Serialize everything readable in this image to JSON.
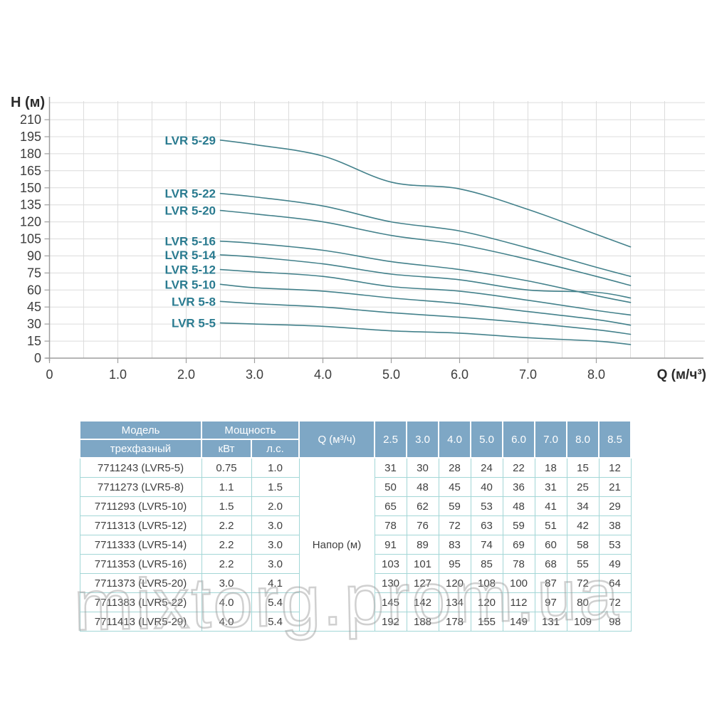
{
  "watermark": {
    "text": "mixtorg.prom.ua"
  },
  "chart_data": {
    "type": "line",
    "title": "",
    "ylabel": "Н (м)",
    "xlabel": "Q (м/ч³)",
    "xlim": [
      0,
      9.0
    ],
    "ylim": [
      0,
      225
    ],
    "grid": true,
    "legend_position": "curve-start-labels",
    "xtick_values": [
      0,
      1,
      2,
      3,
      4,
      5,
      6,
      7,
      8
    ],
    "xtick_labels": [
      "0",
      "1.0",
      "2.0",
      "3.0",
      "4.0",
      "5.0",
      "6.0",
      "7.0",
      "8.0"
    ],
    "ytick_min": 0,
    "ytick_max": 210,
    "ytick_step": 15,
    "x": [
      2.5,
      3.0,
      4.0,
      5.0,
      6.0,
      7.0,
      8.0,
      8.5
    ],
    "series": [
      {
        "name": "LVR 5-29",
        "values": [
          192,
          188,
          178,
          155,
          149,
          131,
          109,
          98
        ]
      },
      {
        "name": "LVR 5-22",
        "values": [
          145,
          142,
          134,
          120,
          112,
          97,
          80,
          72
        ]
      },
      {
        "name": "LVR 5-20",
        "values": [
          130,
          127,
          120,
          108,
          100,
          87,
          72,
          64
        ]
      },
      {
        "name": "LVR 5-16",
        "values": [
          103,
          101,
          95,
          85,
          78,
          68,
          55,
          49
        ]
      },
      {
        "name": "LVR 5-14",
        "values": [
          91,
          89,
          83,
          74,
          69,
          60,
          58,
          53
        ]
      },
      {
        "name": "LVR 5-12",
        "values": [
          78,
          76,
          72,
          63,
          59,
          51,
          42,
          38
        ]
      },
      {
        "name": "LVR 5-10",
        "values": [
          65,
          62,
          59,
          53,
          48,
          41,
          34,
          29
        ]
      },
      {
        "name": "LVR 5-8",
        "values": [
          50,
          48,
          45,
          40,
          36,
          31,
          25,
          21
        ]
      },
      {
        "name": "LVR 5-5",
        "values": [
          31,
          30,
          28,
          24,
          22,
          18,
          15,
          12
        ]
      }
    ],
    "colors": {
      "curve": "#43818b",
      "curve_label": "#2a7b90",
      "grid": "#dcdcdc",
      "axis": "#9e9e9e",
      "tick_text": "#3d3d3d"
    }
  },
  "table": {
    "header": {
      "model_top": "Модель",
      "model_bottom": "трехфазный",
      "power": "Мощность",
      "kw": "кВт",
      "hp": "л.с.",
      "q": "Q (м³/ч)",
      "flows": [
        "2.5",
        "3.0",
        "4.0",
        "5.0",
        "6.0",
        "7.0",
        "8.0",
        "8.5"
      ]
    },
    "napor_label": "Напор (м)",
    "rows": [
      {
        "model": "7711243 (LVR5-5)",
        "kw": "0.75",
        "hp": "1.0",
        "heads": [
          31,
          30,
          28,
          24,
          22,
          18,
          15,
          12
        ]
      },
      {
        "model": "7711273 (LVR5-8)",
        "kw": "1.1",
        "hp": "1.5",
        "heads": [
          50,
          48,
          45,
          40,
          36,
          31,
          25,
          21
        ]
      },
      {
        "model": "7711293 (LVR5-10)",
        "kw": "1.5",
        "hp": "2.0",
        "heads": [
          65,
          62,
          59,
          53,
          48,
          41,
          34,
          29
        ]
      },
      {
        "model": "7711313 (LVR5-12)",
        "kw": "2.2",
        "hp": "3.0",
        "heads": [
          78,
          76,
          72,
          63,
          59,
          51,
          42,
          38
        ]
      },
      {
        "model": "7711333 (LVR5-14)",
        "kw": "2.2",
        "hp": "3.0",
        "heads": [
          91,
          89,
          83,
          74,
          69,
          60,
          58,
          53
        ]
      },
      {
        "model": "7711353 (LVR5-16)",
        "kw": "2.2",
        "hp": "3.0",
        "heads": [
          103,
          101,
          95,
          85,
          78,
          68,
          55,
          49
        ]
      },
      {
        "model": "7711373 (LVR5-20)",
        "kw": "3.0",
        "hp": "4.1",
        "heads": [
          130,
          127,
          120,
          108,
          100,
          87,
          72,
          64
        ]
      },
      {
        "model": "7711383 (LVR5-22)",
        "kw": "4.0",
        "hp": "5.4",
        "heads": [
          145,
          142,
          134,
          120,
          112,
          97,
          80,
          72
        ]
      },
      {
        "model": "7711413 (LVR5-29)",
        "kw": "4.0",
        "hp": "5.4",
        "heads": [
          192,
          188,
          178,
          155,
          149,
          131,
          109,
          98
        ]
      }
    ],
    "colors": {
      "header_bg": "#7ea7c5",
      "header_text": "#ffffff",
      "border": "#a3d6d6",
      "body_text": "#3f3f3f"
    }
  }
}
